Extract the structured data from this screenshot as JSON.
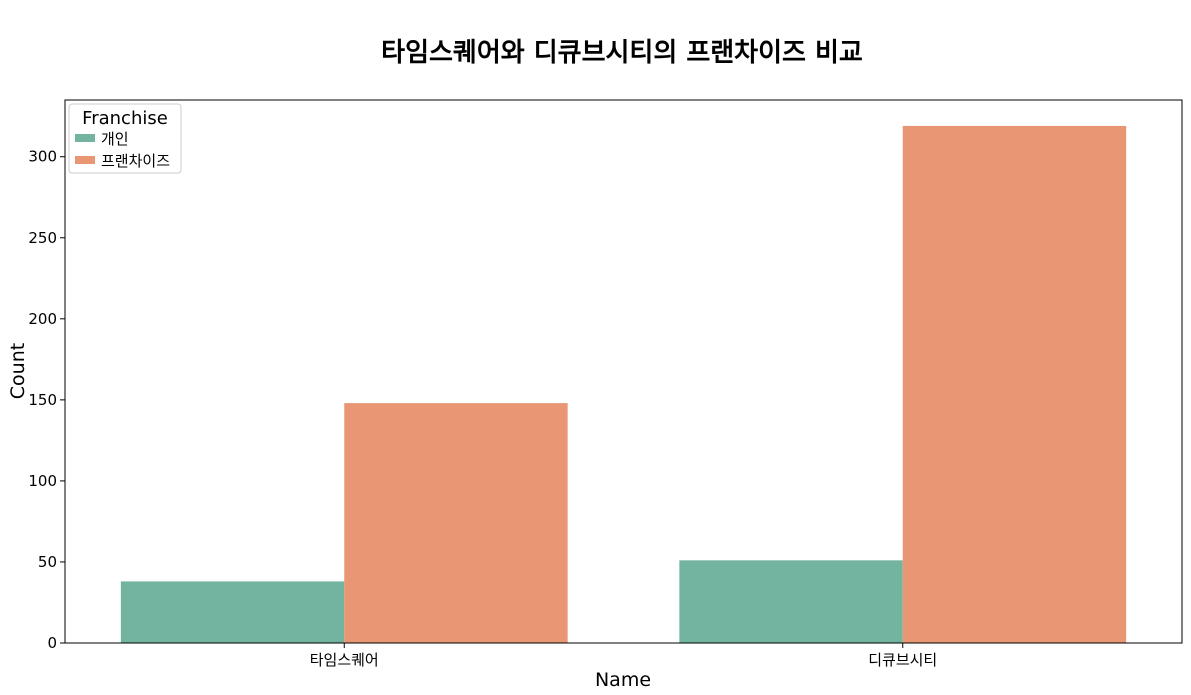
{
  "chart_data": {
    "type": "bar",
    "title": "타임스퀘어와 디큐브시티의 프랜차이즈 비교",
    "xlabel": "Name",
    "ylabel": "Count",
    "categories": [
      "타임스퀘어",
      "디큐브시티"
    ],
    "series": [
      {
        "name": "개인",
        "values": [
          38,
          51
        ],
        "color": "#72b4a0"
      },
      {
        "name": "프랜차이즈",
        "values": [
          148,
          319
        ],
        "color": "#e89674"
      }
    ],
    "ylim": [
      0,
      335
    ],
    "yticks": [
      0,
      50,
      100,
      150,
      200,
      250,
      300
    ],
    "grid": false,
    "legend": {
      "title": "Franchise",
      "placement": "top-left"
    }
  }
}
